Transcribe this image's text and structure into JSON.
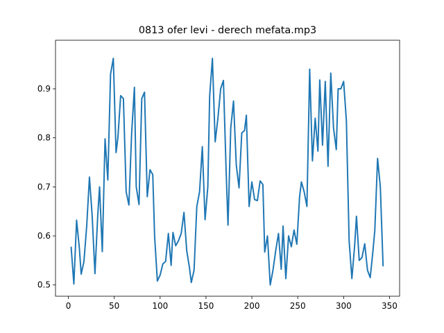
{
  "chart_data": {
    "type": "line",
    "title": "0813 ofer levi - derech mefata.mp3",
    "x": [
      3,
      6,
      9,
      12,
      14,
      17,
      20,
      23,
      26,
      29,
      32,
      34,
      37,
      40,
      43,
      46,
      49,
      52,
      54,
      57,
      60,
      63,
      66,
      69,
      72,
      74,
      77,
      80,
      83,
      86,
      89,
      92,
      94,
      97,
      100,
      103,
      106,
      109,
      112,
      114,
      117,
      120,
      123,
      126,
      129,
      132,
      134,
      137,
      140,
      143,
      146,
      149,
      152,
      154,
      157,
      160,
      163,
      166,
      169,
      172,
      174,
      177,
      180,
      183,
      186,
      189,
      192,
      194,
      197,
      200,
      203,
      206,
      209,
      212,
      214,
      217,
      220,
      223,
      226,
      229,
      232,
      234,
      237,
      240,
      243,
      246,
      249,
      252,
      254,
      257,
      260,
      263,
      266,
      269,
      272,
      274,
      277,
      280,
      283,
      286,
      289,
      292,
      294,
      297,
      300,
      303,
      306,
      309,
      312,
      314,
      317,
      320,
      323,
      326,
      329,
      332,
      334,
      337,
      340,
      343
    ],
    "series": [
      {
        "color": "#1f77b4",
        "values": [
          0.578,
          0.502,
          0.632,
          0.575,
          0.522,
          0.548,
          0.62,
          0.72,
          0.64,
          0.523,
          0.64,
          0.7,
          0.568,
          0.798,
          0.714,
          0.93,
          0.962,
          0.77,
          0.8,
          0.886,
          0.88,
          0.69,
          0.663,
          0.81,
          0.903,
          0.7,
          0.664,
          0.88,
          0.893,
          0.68,
          0.735,
          0.725,
          0.6,
          0.508,
          0.52,
          0.543,
          0.548,
          0.605,
          0.54,
          0.607,
          0.58,
          0.59,
          0.605,
          0.648,
          0.57,
          0.535,
          0.505,
          0.53,
          0.66,
          0.69,
          0.782,
          0.633,
          0.7,
          0.885,
          0.962,
          0.792,
          0.84,
          0.9,
          0.917,
          0.73,
          0.622,
          0.82,
          0.875,
          0.745,
          0.698,
          0.81,
          0.815,
          0.846,
          0.66,
          0.71,
          0.674,
          0.672,
          0.712,
          0.705,
          0.567,
          0.6,
          0.5,
          0.53,
          0.57,
          0.605,
          0.532,
          0.62,
          0.513,
          0.6,
          0.578,
          0.612,
          0.583,
          0.68,
          0.71,
          0.69,
          0.66,
          0.94,
          0.753,
          0.84,
          0.773,
          0.918,
          0.785,
          0.915,
          0.742,
          0.932,
          0.82,
          0.776,
          0.9,
          0.9,
          0.915,
          0.835,
          0.59,
          0.513,
          0.58,
          0.64,
          0.55,
          0.556,
          0.584,
          0.53,
          0.515,
          0.57,
          0.612,
          0.758,
          0.7,
          0.538
        ]
      }
    ],
    "xlim": [
      -14,
      361
    ],
    "ylim": [
      0.477,
      0.999
    ],
    "xticks": [
      0,
      50,
      100,
      150,
      200,
      250,
      300,
      350
    ],
    "yticks": [
      0.5,
      0.6,
      0.7,
      0.8,
      0.9
    ]
  }
}
